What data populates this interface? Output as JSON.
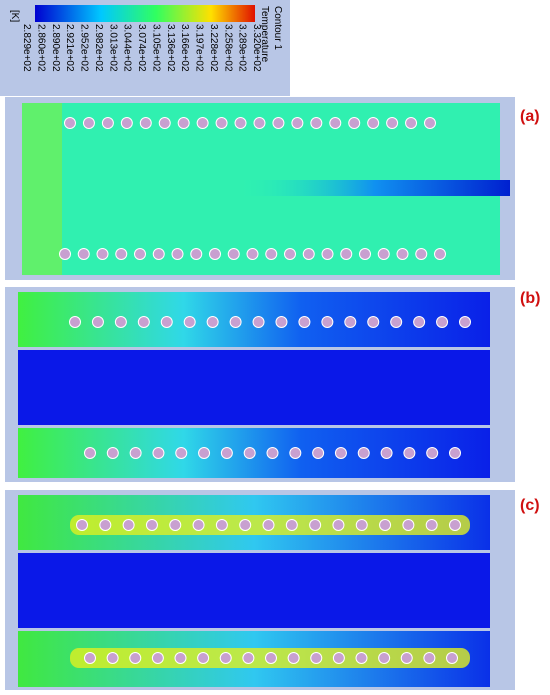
{
  "legend": {
    "unit": "[K]",
    "title": "Temperature",
    "subtitle": "Contour 1",
    "labels": [
      "2.829e+02",
      "2.860e+02",
      "2.890e+02",
      "2.921e+02",
      "2.952e+02",
      "2.982e+02",
      "3.013e+02",
      "3.044e+02",
      "3.074e+02",
      "3.105e+02",
      "3.136e+02",
      "3.166e+02",
      "3.197e+02",
      "3.228e+02",
      "3.258e+02",
      "3.289e+02",
      "3.320e+02"
    ]
  },
  "panels": [
    {
      "label": "(a)"
    },
    {
      "label": "(b)"
    },
    {
      "label": "(c)"
    }
  ]
}
